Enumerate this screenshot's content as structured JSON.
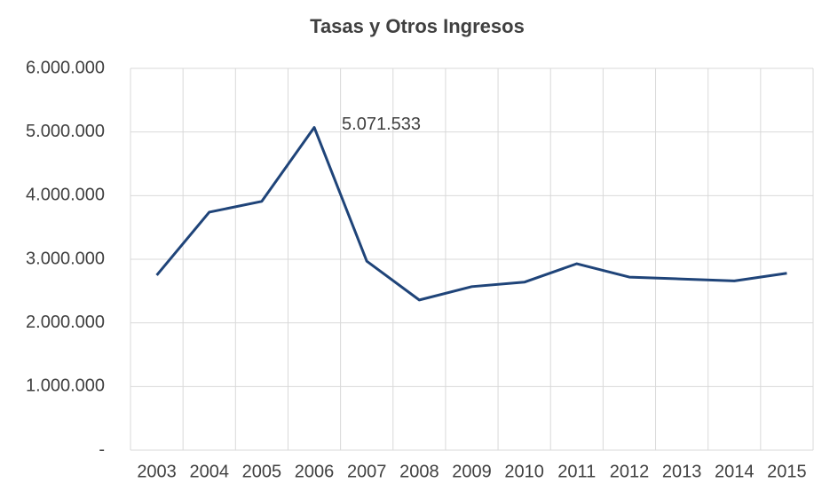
{
  "chart_data": {
    "type": "line",
    "title": "Tasas y Otros Ingresos",
    "categories": [
      "2003",
      "2004",
      "2005",
      "2006",
      "2007",
      "2008",
      "2009",
      "2010",
      "2011",
      "2012",
      "2013",
      "2014",
      "2015"
    ],
    "series": [
      {
        "name": "Tasas y Otros Ingresos",
        "color": "#1f4479",
        "values": [
          2750000,
          3740000,
          3910000,
          5071533,
          2970000,
          2360000,
          2570000,
          2640000,
          2930000,
          2720000,
          2690000,
          2660000,
          2780000
        ],
        "value_labels": [
          null,
          null,
          null,
          "5.071.533",
          null,
          null,
          null,
          null,
          null,
          null,
          null,
          null,
          null
        ]
      }
    ],
    "ylim": [
      0,
      6000000
    ],
    "yticks": [
      {
        "value": 0,
        "label": "-"
      },
      {
        "value": 1000000,
        "label": "1.000.000"
      },
      {
        "value": 2000000,
        "label": "2.000.000"
      },
      {
        "value": 3000000,
        "label": "3.000.000"
      },
      {
        "value": 4000000,
        "label": "4.000.000"
      },
      {
        "value": 5000000,
        "label": "5.000.000"
      },
      {
        "value": 6000000,
        "label": "6.000.000"
      }
    ],
    "grid": true
  }
}
